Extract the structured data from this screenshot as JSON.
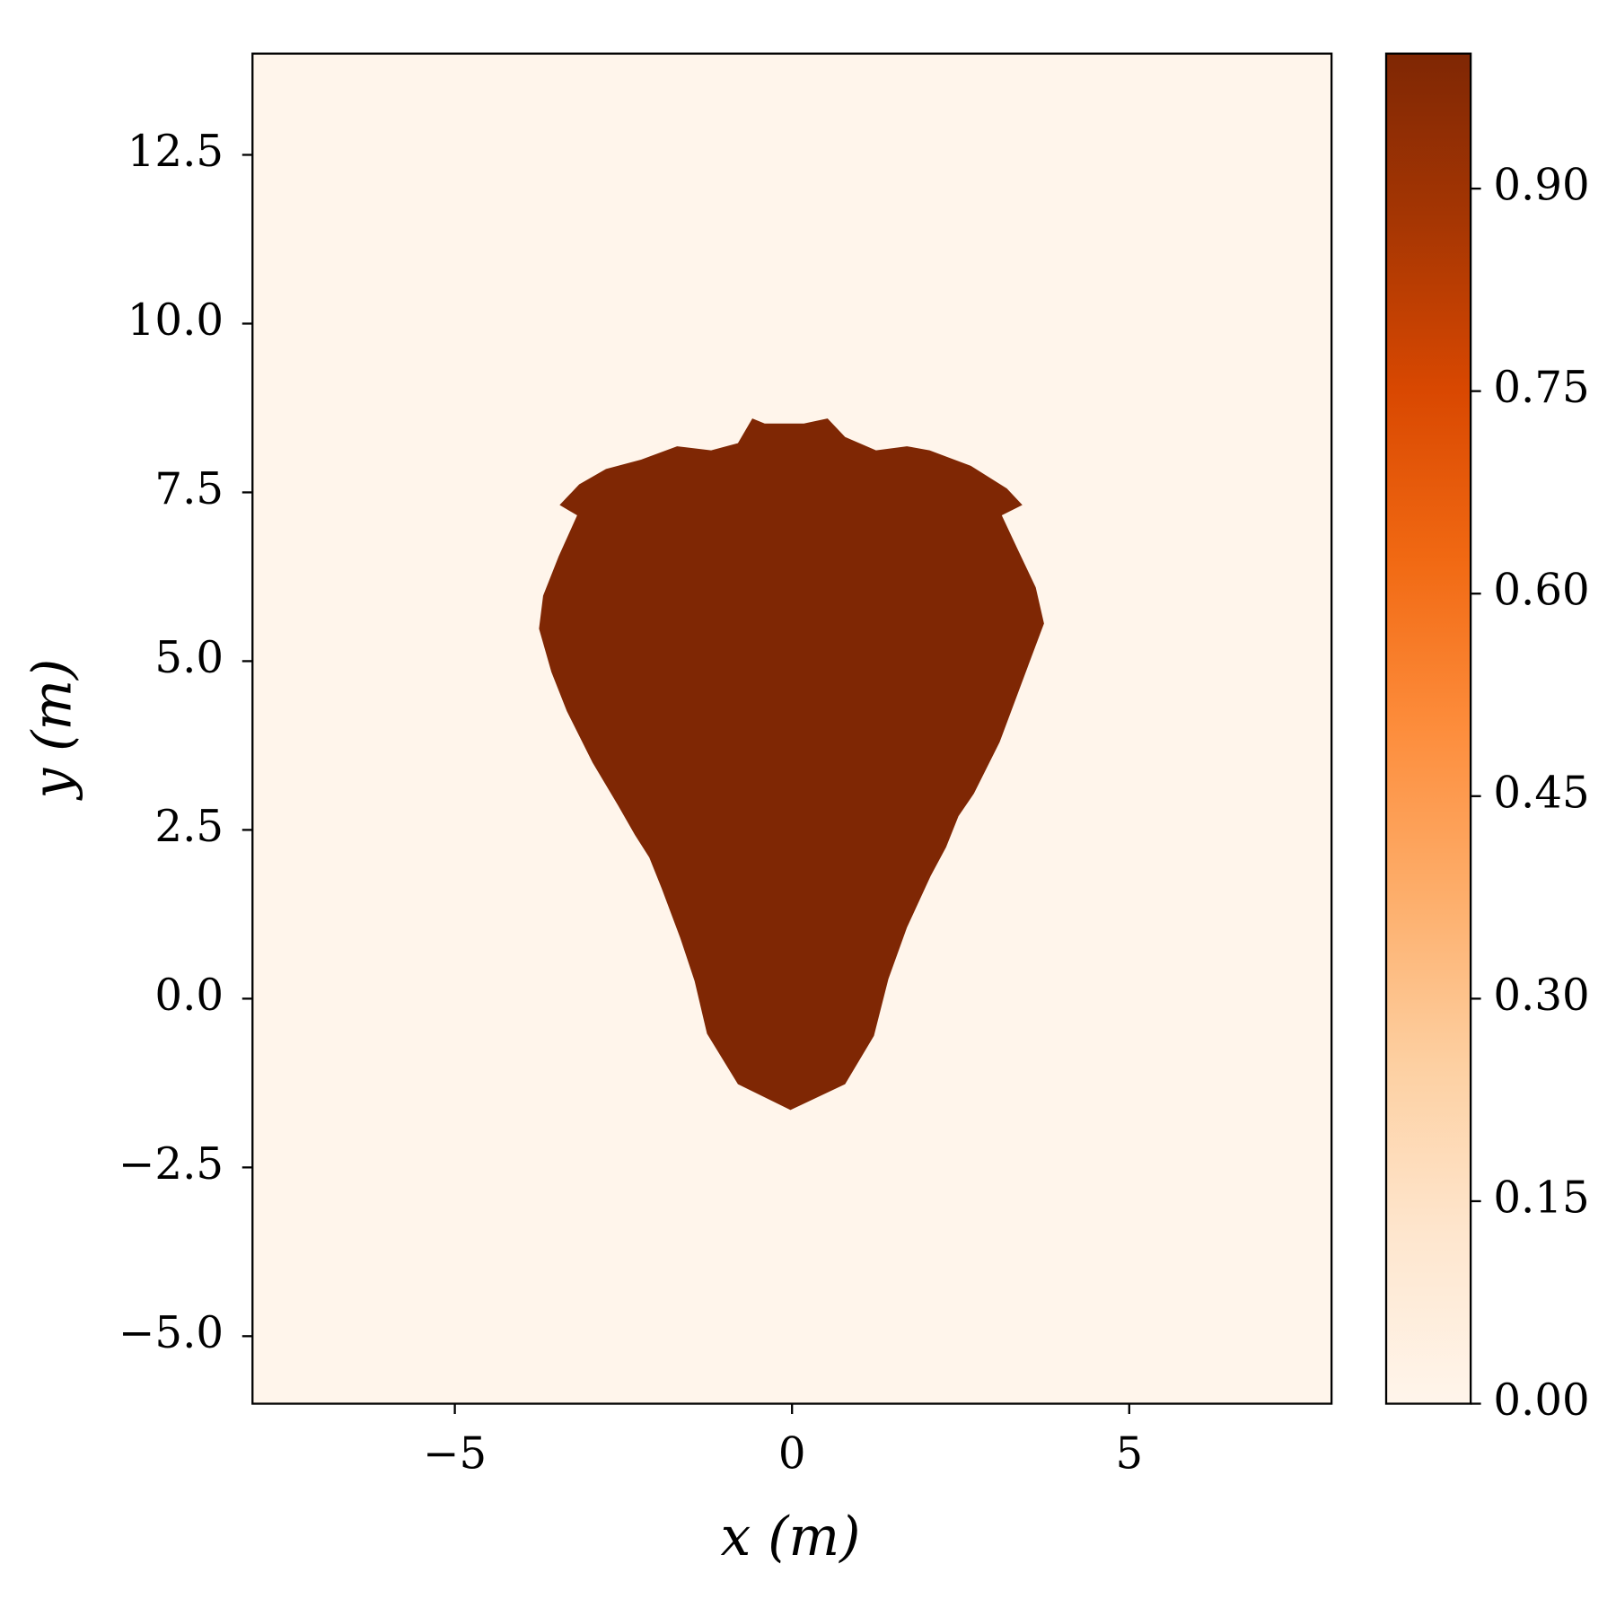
{
  "chart_data": {
    "type": "heatmap",
    "xlabel": "x (m)",
    "ylabel": "y (m)",
    "xlim": [
      -8,
      8
    ],
    "ylim": [
      -6,
      14
    ],
    "xticks": [
      {
        "value": -5,
        "label": "−5"
      },
      0,
      5
    ],
    "yticks": [
      {
        "value": -5,
        "label": "−5.0"
      },
      {
        "value": -2.5,
        "label": "−2.5"
      },
      {
        "value": 0,
        "label": "0.0"
      },
      2.5,
      {
        "value": 5,
        "label": "5.0"
      },
      7.5,
      {
        "value": 10,
        "label": "10.0"
      },
      12.5
    ],
    "colorbar": {
      "lim": [
        0,
        1
      ],
      "ticks": [
        {
          "value": 0,
          "label": "0.00"
        },
        {
          "value": 0.15,
          "label": "0.15"
        },
        {
          "value": 0.3,
          "label": "0.30"
        },
        {
          "value": 0.45,
          "label": "0.45"
        },
        {
          "value": 0.6,
          "label": "0.60"
        },
        {
          "value": 0.75,
          "label": "0.75"
        },
        {
          "value": 0.9,
          "label": "0.90"
        }
      ],
      "colormap": [
        "#fff5eb",
        "#fee6ce",
        "#fdd0a2",
        "#fdae6b",
        "#fd8d3c",
        "#f16913",
        "#d94801",
        "#a63603",
        "#7f2704"
      ]
    }
  }
}
